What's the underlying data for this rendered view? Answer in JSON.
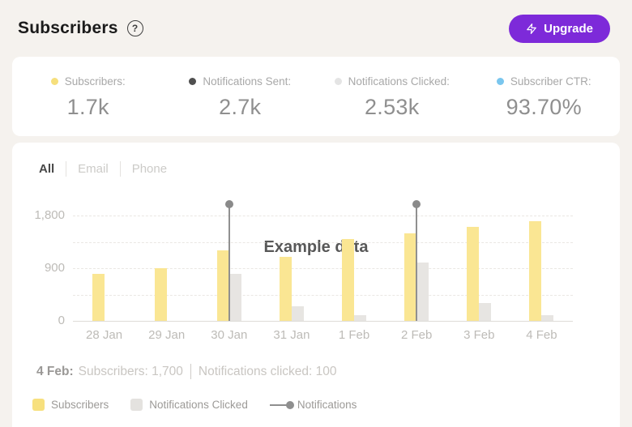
{
  "header": {
    "title": "Subscribers",
    "help_icon": "?",
    "upgrade": {
      "label": "Upgrade",
      "icon": "lightning-bolt",
      "bg": "#7D2AD9",
      "text_color": "#FFFFFF"
    }
  },
  "stats": {
    "items": [
      {
        "label": "Subscribers:",
        "value": "1.7k",
        "dot_color": "#F6DF7C"
      },
      {
        "label": "Notifications Sent:",
        "value": "2.7k",
        "dot_color": "#4F4F4F"
      },
      {
        "label": "Notifications Clicked:",
        "value": "2.53k",
        "dot_color": "#E4E4E4"
      },
      {
        "label": "Subscriber CTR:",
        "value": "93.70%",
        "dot_color": "#7AC6EE"
      }
    ]
  },
  "tabs": [
    {
      "label": "All",
      "active": true
    },
    {
      "label": "Email",
      "active": false
    },
    {
      "label": "Phone",
      "active": false
    }
  ],
  "chart_data": {
    "type": "bar",
    "title_overlay": "Example data",
    "categories": [
      "28 Jan",
      "29 Jan",
      "30 Jan",
      "31 Jan",
      "1 Feb",
      "2 Feb",
      "3 Feb",
      "4 Feb"
    ],
    "series": [
      {
        "name": "Subscribers",
        "type": "bar",
        "color": "#FAE693",
        "values": [
          800,
          900,
          1200,
          1100,
          1400,
          1500,
          1600,
          1700
        ]
      },
      {
        "name": "Notifications Clicked",
        "type": "bar",
        "color": "#E7E5E2",
        "values": [
          0,
          0,
          800,
          250,
          100,
          1000,
          300,
          100
        ]
      },
      {
        "name": "Notifications",
        "type": "needle-marker",
        "color": "#8A8A8A",
        "values": [
          null,
          null,
          2000,
          null,
          null,
          2000,
          null,
          null
        ],
        "note": "markers rise above the y-axis maximum (clipped)"
      }
    ],
    "ylim": [
      0,
      1800
    ],
    "yticks": [
      {
        "value": 0,
        "label": "0"
      },
      {
        "value": 900,
        "label": "900"
      },
      {
        "value": 1800,
        "label": "1,800"
      }
    ],
    "gridlines": [
      450,
      900,
      1350,
      1800
    ],
    "grid_style": "dashed",
    "legend_position": "bottom"
  },
  "caption": {
    "prefix": "4 Feb:",
    "subscribers": "Subscribers: 1,700",
    "clicked": "Notifications clicked: 100"
  },
  "legend": [
    {
      "label": "Subscribers",
      "swatch": "square",
      "color": "#F7E07E"
    },
    {
      "label": "Notifications Clicked",
      "swatch": "square",
      "color": "#E4E2DF"
    },
    {
      "label": "Notifications",
      "swatch": "line-dot",
      "color": "#8F8F8F"
    }
  ]
}
